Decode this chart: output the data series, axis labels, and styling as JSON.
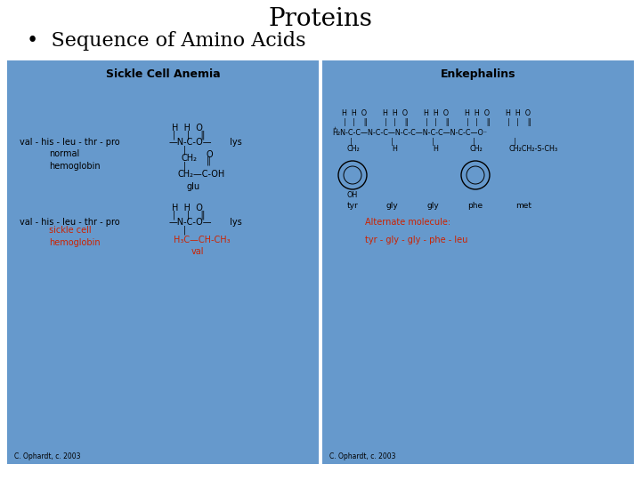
{
  "title": "Proteins",
  "subtitle": "•  Sequence of Amino Acids",
  "bg_color": "#ffffff",
  "panel_color": "#6699cc",
  "left_panel_title": "Sickle Cell Anemia",
  "right_panel_title": "Enkephalins",
  "credit": "C. Ophardt, c. 2003",
  "black": "#000000",
  "red": "#cc2200",
  "title_fontsize": 20,
  "subtitle_fontsize": 16,
  "fs_panel_title": 9,
  "fs_body": 7,
  "fs_small": 5.8
}
